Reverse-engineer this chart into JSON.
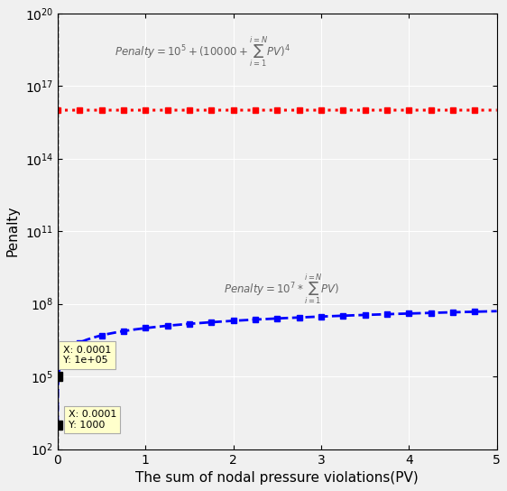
{
  "xlabel": "The sum of nodal pressure violations(PV)",
  "ylabel": "Penalty",
  "xlim": [
    0,
    5
  ],
  "ymin": 100,
  "ymax": 1e+20,
  "red_color": "red",
  "blue_color": "blue",
  "bg_color": "#f0f0f0",
  "grid_color": "white",
  "red_formula": "$Penalty = 10^5 + (10000 + \\sum_{i=1}^{i=N} PV)^4$",
  "blue_formula": "$Penalty = 10^7 * \\sum_{i=1}^{i=N} PV)$",
  "tooltip1_text": "X: 0.0001\nY: 1e+05",
  "tooltip2_text": "X: 0.0001\nY: 1000",
  "vline_x": 0.0001,
  "pt1_x": 0.0001,
  "pt1_y": 100000.0,
  "pt2_x": 0.0001,
  "pt2_y": 1000.0
}
